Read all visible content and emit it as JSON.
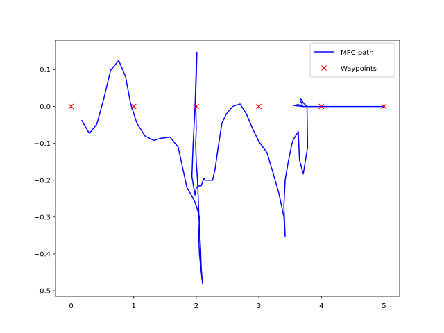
{
  "chart_data": {
    "type": "line",
    "title": "",
    "xlabel": "",
    "ylabel": "",
    "xlim": [
      -0.25,
      5.25
    ],
    "ylim": [
      -0.515,
      0.18
    ],
    "xticks": [
      0,
      1,
      2,
      3,
      4,
      5
    ],
    "xtick_labels": [
      "0",
      "1",
      "2",
      "3",
      "4",
      "5"
    ],
    "yticks": [
      0.1,
      0.0,
      -0.1,
      -0.2,
      -0.3,
      -0.4,
      -0.5
    ],
    "ytick_labels": [
      "0.1",
      "0.0",
      "−0.1",
      "−0.2",
      "−0.3",
      "−0.4",
      "−0.5"
    ],
    "grid": false,
    "legend_position": "top-right",
    "series": [
      {
        "name": "MPC path",
        "kind": "line",
        "color": "#0000ff",
        "x": [
          0.17,
          0.29,
          0.41,
          0.52,
          0.63,
          0.76,
          0.87,
          0.95,
          1.05,
          1.18,
          1.32,
          1.44,
          1.58,
          1.71,
          1.78,
          1.85,
          1.92,
          1.98,
          2.02,
          2.05,
          2.04,
          2.05,
          2.08,
          2.1,
          2.08,
          2.07,
          2.05,
          2.02,
          2.0,
          1.99,
          2.0,
          1.99,
          2.0,
          2.01,
          2.0,
          1.98,
          1.95,
          1.93,
          1.98,
          2.0,
          2.05,
          2.08,
          2.12,
          2.14,
          2.26,
          2.3,
          2.35,
          2.41,
          2.48,
          2.58,
          2.7,
          2.8,
          2.9,
          3.0,
          3.13,
          3.21,
          3.32,
          3.4,
          3.42,
          3.4,
          3.42,
          3.47,
          3.53,
          3.55,
          3.63,
          3.65,
          3.71,
          3.78,
          3.77,
          3.71,
          3.67,
          3.66,
          3.7,
          3.62,
          3.58,
          3.55,
          3.6,
          3.7,
          4.0,
          5.0
        ],
        "y": [
          -0.038,
          -0.073,
          -0.048,
          0.02,
          0.098,
          0.125,
          0.081,
          0.008,
          -0.045,
          -0.08,
          -0.092,
          -0.086,
          -0.083,
          -0.11,
          -0.165,
          -0.22,
          -0.24,
          -0.26,
          -0.28,
          -0.3,
          -0.35,
          -0.4,
          -0.45,
          -0.48,
          -0.44,
          -0.39,
          -0.33,
          -0.2,
          -0.15,
          -0.1,
          -0.06,
          0.03,
          0.08,
          0.147,
          0.11,
          0.0,
          -0.1,
          -0.19,
          -0.24,
          -0.22,
          -0.215,
          -0.215,
          -0.195,
          -0.2,
          -0.2,
          -0.17,
          -0.11,
          -0.045,
          -0.02,
          0.0,
          0.007,
          -0.02,
          -0.06,
          -0.095,
          -0.125,
          -0.17,
          -0.235,
          -0.3,
          -0.352,
          -0.27,
          -0.2,
          -0.15,
          -0.1,
          -0.09,
          -0.068,
          -0.145,
          -0.183,
          -0.11,
          0.0,
          0.01,
          0.022,
          0.018,
          0.003,
          0.005,
          0.003,
          0.003,
          0.002,
          0.0,
          0.0,
          0.0
        ]
      },
      {
        "name": "Waypoints",
        "kind": "marker",
        "marker": "x",
        "color": "#ff0000",
        "x": [
          0,
          1,
          2,
          3,
          4,
          5
        ],
        "y": [
          0,
          0,
          0,
          0,
          0,
          0
        ]
      }
    ]
  }
}
